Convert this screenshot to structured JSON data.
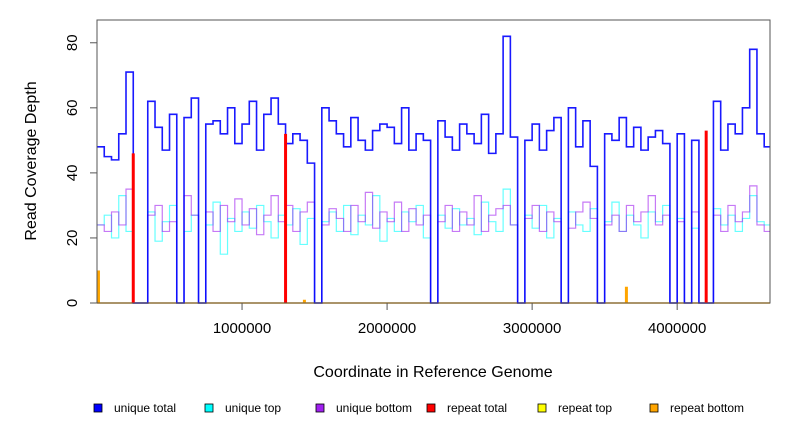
{
  "chart_data": {
    "type": "line",
    "xlabel": "Coordinate in Reference Genome",
    "ylabel": "Read Coverage Depth",
    "xlim": [
      0,
      4640000
    ],
    "ylim": [
      0,
      87
    ],
    "xticks": [
      1000000,
      2000000,
      3000000,
      4000000
    ],
    "xtick_labels": [
      "1000000",
      "2000000",
      "3000000",
      "4000000"
    ],
    "yticks": [
      0,
      20,
      40,
      60,
      80
    ],
    "ytick_labels": [
      "0",
      "20",
      "40",
      "60",
      "80"
    ],
    "legend_placement": "bottom",
    "x_step": 50000,
    "series": [
      {
        "name": "unique total",
        "color": "#0000ff",
        "values": [
          48,
          45,
          44,
          52,
          71,
          0,
          0,
          62,
          54,
          47,
          58,
          0,
          57,
          63,
          0,
          55,
          56,
          52,
          60,
          49,
          55,
          62,
          47,
          58,
          63,
          55,
          49,
          52,
          50,
          43,
          0,
          60,
          56,
          52,
          48,
          57,
          50,
          47,
          53,
          55,
          54,
          49,
          60,
          47,
          52,
          50,
          0,
          56,
          51,
          47,
          55,
          52,
          49,
          58,
          46,
          52,
          82,
          51,
          0,
          50,
          55,
          47,
          53,
          57,
          0,
          60,
          48,
          56,
          42,
          0,
          52,
          50,
          57,
          48,
          54,
          47,
          51,
          53,
          49,
          0,
          52,
          0,
          50,
          0,
          0,
          62,
          47,
          55,
          52,
          60,
          78,
          52,
          48
        ]
      },
      {
        "name": "unique top",
        "color": "#00ffff",
        "values": [
          24,
          27,
          20,
          33,
          22,
          0,
          0,
          28,
          19,
          25,
          30,
          0,
          22,
          27,
          0,
          24,
          31,
          15,
          26,
          22,
          28,
          23,
          30,
          25,
          20,
          27,
          24,
          29,
          18,
          26,
          0,
          25,
          28,
          22,
          30,
          21,
          27,
          24,
          33,
          19,
          26,
          22,
          28,
          25,
          30,
          20,
          0,
          27,
          23,
          29,
          24,
          26,
          21,
          31,
          25,
          22,
          35,
          24,
          0,
          27,
          23,
          30,
          20,
          26,
          0,
          28,
          24,
          22,
          29,
          0,
          25,
          31,
          22,
          27,
          24,
          20,
          28,
          25,
          30,
          0,
          26,
          0,
          23,
          0,
          0,
          29,
          24,
          27,
          22,
          26,
          33,
          25,
          24
        ]
      },
      {
        "name": "unique bottom",
        "color": "#a020f0",
        "values": [
          24,
          22,
          28,
          24,
          35,
          0,
          0,
          27,
          30,
          22,
          25,
          0,
          33,
          27,
          0,
          28,
          22,
          30,
          25,
          32,
          24,
          29,
          21,
          27,
          33,
          25,
          30,
          22,
          28,
          31,
          0,
          24,
          29,
          26,
          22,
          30,
          25,
          34,
          23,
          28,
          25,
          31,
          22,
          29,
          24,
          27,
          0,
          25,
          30,
          22,
          28,
          24,
          33,
          22,
          27,
          29,
          30,
          24,
          0,
          26,
          30,
          22,
          28,
          25,
          0,
          23,
          28,
          31,
          26,
          0,
          24,
          27,
          22,
          30,
          25,
          28,
          33,
          24,
          27,
          0,
          25,
          0,
          28,
          0,
          0,
          27,
          22,
          30,
          25,
          28,
          36,
          24,
          22
        ]
      },
      {
        "name": "repeat total",
        "color": "#ff0000",
        "points": [
          [
            250000,
            46
          ],
          [
            1300000,
            52
          ],
          [
            4200000,
            53
          ]
        ]
      },
      {
        "name": "repeat top",
        "color": "#ffff00",
        "points": [
          [
            10000,
            6
          ]
        ]
      },
      {
        "name": "repeat bottom",
        "color": "#ffa500",
        "points": [
          [
            10000,
            10
          ],
          [
            1430000,
            1
          ],
          [
            3650000,
            5
          ]
        ]
      }
    ]
  }
}
